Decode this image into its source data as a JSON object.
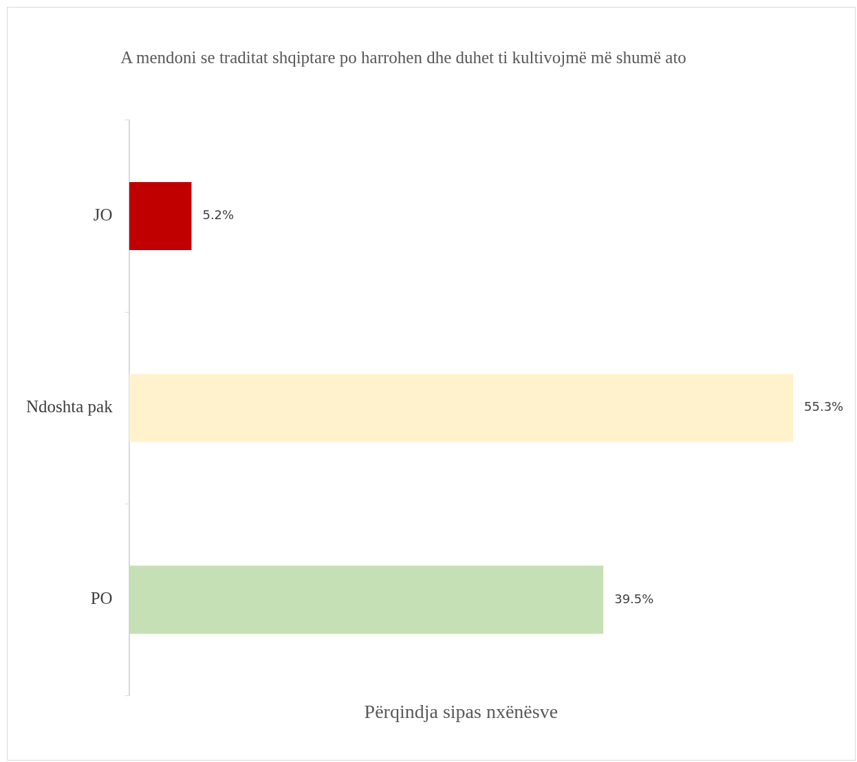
{
  "chart_data": {
    "type": "bar",
    "orientation": "horizontal",
    "title": "A mendoni se traditat shqiptare po harrohen dhe duhet ti kultivojmë më shumë ato",
    "xlabel": "Përqindja sipas nxënësve",
    "categories": [
      "JO",
      "Ndoshta pak",
      "PO"
    ],
    "values": [
      5.2,
      55.3,
      39.5
    ],
    "colors": [
      "#c00000",
      "#fff2cc",
      "#c5e0b4"
    ],
    "value_labels": [
      "5.2%",
      "55.3%",
      "39.5%"
    ],
    "grid": false,
    "legend": false
  }
}
